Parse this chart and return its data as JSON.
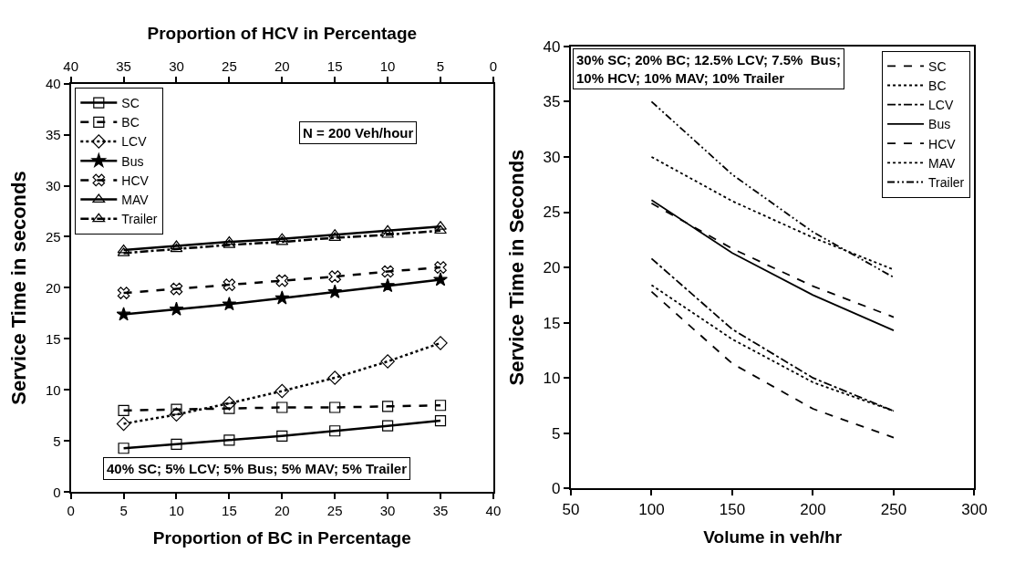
{
  "chart_data": [
    {
      "type": "line",
      "xlabel": "Proportion of BC in Percentage",
      "ylabel": "Service Time in seconds",
      "x2label": "Proportion of HCV in Percentage",
      "xlim": [
        0,
        40
      ],
      "xticks": [
        0,
        5,
        10,
        15,
        20,
        25,
        30,
        35,
        40
      ],
      "x2lim": [
        40,
        0
      ],
      "x2ticks": [
        40,
        35,
        30,
        25,
        20,
        15,
        10,
        5,
        0
      ],
      "ylim": [
        0,
        40
      ],
      "yticks": [
        0,
        5,
        10,
        15,
        20,
        25,
        30,
        35,
        40
      ],
      "legend": "top left",
      "x": [
        5,
        10,
        15,
        20,
        25,
        30,
        35
      ],
      "series": [
        {
          "name": "SC",
          "color": "#000000",
          "line_style": "solid",
          "marker": "square",
          "values": [
            4.3,
            4.7,
            5.1,
            5.5,
            6.0,
            6.5,
            7.0
          ]
        },
        {
          "name": "BC",
          "color": "#000000",
          "line_style": "dashed",
          "marker": "square",
          "values": [
            8.0,
            8.1,
            8.2,
            8.3,
            8.3,
            8.4,
            8.5
          ]
        },
        {
          "name": "LCV",
          "color": "#000000",
          "line_style": "dotted",
          "marker": "diamond",
          "values": [
            6.7,
            7.6,
            8.7,
            9.9,
            11.2,
            12.8,
            14.6
          ]
        },
        {
          "name": "Bus",
          "color": "#000000",
          "line_style": "solid",
          "marker": "star",
          "values": [
            17.4,
            17.9,
            18.4,
            19.0,
            19.6,
            20.2,
            20.8
          ]
        },
        {
          "name": "HCV",
          "color": "#000000",
          "line_style": "dashed",
          "marker": "cross",
          "values": [
            19.5,
            19.9,
            20.3,
            20.7,
            21.1,
            21.6,
            22.0
          ]
        },
        {
          "name": "MAV",
          "color": "#000000",
          "line_style": "solid",
          "marker": "triangle",
          "values": [
            23.7,
            24.1,
            24.5,
            24.8,
            25.2,
            25.6,
            26.0
          ]
        },
        {
          "name": "Trailer",
          "color": "#000000",
          "line_style": "dashdot",
          "marker": "triangle",
          "values": [
            23.4,
            23.8,
            24.2,
            24.5,
            24.9,
            25.2,
            25.6
          ]
        }
      ],
      "annotations": [
        "N = 200 Veh/hour",
        "40% SC; 5% LCV; 5% Bus; 5% MAV; 5% Trailer"
      ]
    },
    {
      "type": "line",
      "xlabel": "Volume in veh/hr",
      "ylabel": "Service Time in Seconds",
      "xlim": [
        50,
        300
      ],
      "xticks": [
        50,
        100,
        150,
        200,
        250,
        300
      ],
      "ylim": [
        0,
        40
      ],
      "yticks": [
        0,
        5,
        10,
        15,
        20,
        25,
        30,
        35,
        40
      ],
      "legend": "top right",
      "x": [
        100,
        150,
        200,
        250
      ],
      "series": [
        {
          "name": "SC",
          "color": "#000000",
          "line_style": "dashed",
          "values": [
            17.8,
            11.3,
            7.2,
            4.6
          ]
        },
        {
          "name": "BC",
          "color": "#000000",
          "line_style": "dotted",
          "values": [
            18.4,
            13.5,
            9.6,
            7.0
          ]
        },
        {
          "name": "LCV",
          "color": "#000000",
          "line_style": "dashdot",
          "values": [
            20.8,
            14.4,
            10.0,
            7.0
          ]
        },
        {
          "name": "Bus",
          "color": "#000000",
          "line_style": "solid",
          "values": [
            26.1,
            21.3,
            17.5,
            14.3
          ]
        },
        {
          "name": "HCV",
          "color": "#000000",
          "line_style": "dashed",
          "values": [
            25.8,
            21.7,
            18.3,
            15.5
          ]
        },
        {
          "name": "MAV",
          "color": "#000000",
          "line_style": "dotted",
          "values": [
            30.0,
            26.0,
            22.7,
            19.8
          ]
        },
        {
          "name": "Trailer",
          "color": "#000000",
          "line_style": "dashdotdot",
          "values": [
            35.0,
            28.4,
            23.2,
            19.1
          ]
        }
      ],
      "annotations": [
        "30% SC; 20% BC; 12.5% LCV; 7.5%  Bus;\n10% HCV; 10% MAV; 10% Trailer"
      ]
    }
  ]
}
